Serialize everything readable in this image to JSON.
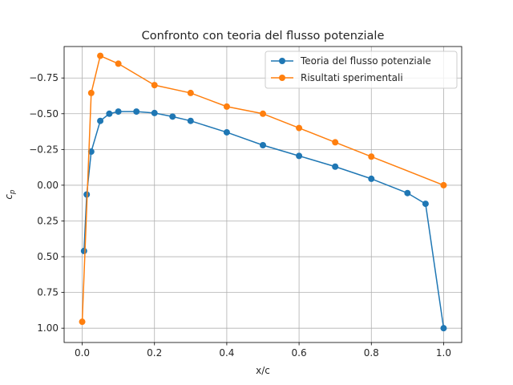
{
  "chart_data": {
    "type": "line",
    "title": "Confronto con teoria del flusso potenziale",
    "xlabel": "x/c",
    "ylabel": "c",
    "ylabel_subscript": "p",
    "xlim": [
      -0.05,
      1.05
    ],
    "ylim": [
      1.1,
      -0.97
    ],
    "y_inverted": true,
    "grid": true,
    "legend_position": "upper right",
    "xticks": [
      0.0,
      0.2,
      0.4,
      0.6,
      0.8,
      1.0
    ],
    "xtick_labels": [
      "0.0",
      "0.2",
      "0.4",
      "0.6",
      "0.8",
      "1.0"
    ],
    "yticks": [
      -0.75,
      -0.5,
      -0.25,
      0.0,
      0.25,
      0.5,
      0.75,
      1.0
    ],
    "ytick_labels": [
      "−0.75",
      "−0.50",
      "−0.25",
      "0.00",
      "0.25",
      "0.50",
      "0.75",
      "1.00"
    ],
    "series": [
      {
        "name": "Teoria del flusso potenziale",
        "color": "#1f77b4",
        "x": [
          0.005,
          0.0125,
          0.025,
          0.05,
          0.075,
          0.1,
          0.15,
          0.2,
          0.25,
          0.3,
          0.4,
          0.5,
          0.6,
          0.7,
          0.8,
          0.9,
          0.95,
          1.0
        ],
        "y": [
          0.46,
          0.065,
          -0.235,
          -0.45,
          -0.5,
          -0.515,
          -0.515,
          -0.505,
          -0.48,
          -0.45,
          -0.37,
          -0.28,
          -0.205,
          -0.13,
          -0.045,
          0.055,
          0.13,
          1.0
        ]
      },
      {
        "name": "Risultati sperimentali",
        "color": "#ff7f0e",
        "x": [
          0.0,
          0.025,
          0.05,
          0.1,
          0.2,
          0.3,
          0.4,
          0.5,
          0.6,
          0.7,
          0.8,
          1.0
        ],
        "y": [
          0.955,
          -0.645,
          -0.905,
          -0.85,
          -0.7,
          -0.645,
          -0.55,
          -0.5,
          -0.4,
          -0.3,
          -0.2,
          0.0
        ]
      }
    ]
  }
}
